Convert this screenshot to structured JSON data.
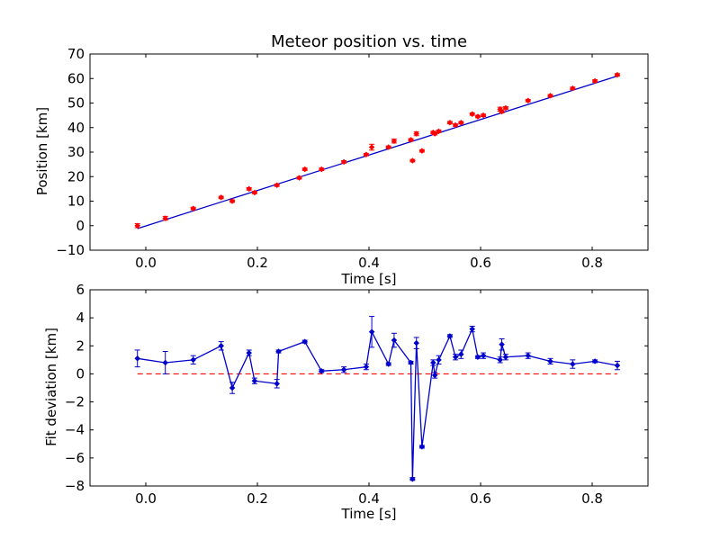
{
  "chart_data": [
    {
      "type": "scatter",
      "title": "Meteor position vs. time",
      "xlabel": "Time [s]",
      "ylabel": "Position [km]",
      "xlim": [
        -0.1,
        0.9
      ],
      "ylim": [
        -10,
        70
      ],
      "xticks": [
        0.0,
        0.2,
        0.4,
        0.6,
        0.8
      ],
      "xtick_labels": [
        "0.0",
        "0.2",
        "0.4",
        "0.6",
        "0.8"
      ],
      "yticks": [
        -10,
        0,
        10,
        20,
        30,
        40,
        50,
        60,
        70
      ],
      "ytick_labels": [
        "−10",
        "0",
        "10",
        "20",
        "30",
        "40",
        "50",
        "60",
        "70"
      ],
      "grid": false,
      "colors": {
        "points": "#ff0000",
        "fit": "#0000cc"
      },
      "series": [
        {
          "kind": "points_with_errorbars",
          "x": [
            -0.015,
            0.035,
            0.085,
            0.135,
            0.155,
            0.185,
            0.195,
            0.235,
            0.275,
            0.285,
            0.315,
            0.355,
            0.395,
            0.405,
            0.435,
            0.445,
            0.475,
            0.478,
            0.485,
            0.495,
            0.515,
            0.518,
            0.525,
            0.545,
            0.555,
            0.565,
            0.585,
            0.595,
            0.605,
            0.635,
            0.638,
            0.645,
            0.685,
            0.725,
            0.765,
            0.805,
            0.845
          ],
          "y": [
            0,
            3,
            7,
            11.5,
            10,
            15,
            13.5,
            16.5,
            19.5,
            23,
            23,
            26,
            29,
            32,
            32,
            34.5,
            35,
            26.5,
            37.5,
            30.5,
            38,
            37.5,
            38.5,
            42,
            41,
            42,
            45.5,
            44.5,
            45,
            47.5,
            46.5,
            48,
            51,
            53,
            56,
            59,
            61.5
          ],
          "yerr": [
            0.8,
            0.8,
            0.5,
            0.5,
            0.5,
            0.5,
            0.5,
            0.5,
            0.5,
            0.5,
            0.5,
            0.5,
            0.5,
            1.2,
            0.5,
            0.8,
            0.5,
            0.5,
            0.8,
            0.5,
            0.5,
            0.5,
            0.5,
            0.5,
            0.5,
            0.5,
            0.5,
            0.5,
            0.5,
            0.8,
            0.5,
            0.5,
            0.5,
            0.5,
            0.5,
            0.5,
            0.5
          ]
        },
        {
          "kind": "line",
          "x": [
            -0.015,
            0.845
          ],
          "y": [
            -1.2,
            61
          ]
        }
      ]
    },
    {
      "type": "line",
      "xlabel": "Time [s]",
      "ylabel": "Fit deviation [km]",
      "xlim": [
        -0.1,
        0.9
      ],
      "ylim": [
        -8,
        6
      ],
      "xticks": [
        0.0,
        0.2,
        0.4,
        0.6,
        0.8
      ],
      "xtick_labels": [
        "0.0",
        "0.2",
        "0.4",
        "0.6",
        "0.8"
      ],
      "yticks": [
        -8,
        -6,
        -4,
        -2,
        0,
        2,
        4,
        6
      ],
      "ytick_labels": [
        "−8",
        "−6",
        "−4",
        "−2",
        "0",
        "2",
        "4",
        "6"
      ],
      "grid": false,
      "colors": {
        "line": "#0000cc",
        "zero": "#ff0000"
      },
      "series": [
        {
          "kind": "line_with_errorbars",
          "x": [
            -0.015,
            0.035,
            0.085,
            0.135,
            0.155,
            0.185,
            0.195,
            0.235,
            0.238,
            0.285,
            0.315,
            0.355,
            0.395,
            0.405,
            0.435,
            0.445,
            0.475,
            0.478,
            0.485,
            0.495,
            0.515,
            0.518,
            0.525,
            0.545,
            0.555,
            0.565,
            0.585,
            0.595,
            0.605,
            0.635,
            0.638,
            0.645,
            0.685,
            0.725,
            0.765,
            0.805,
            0.845
          ],
          "y": [
            1.1,
            0.8,
            1.0,
            2.0,
            -1.0,
            1.5,
            -0.5,
            -0.7,
            1.6,
            2.3,
            0.2,
            0.3,
            0.5,
            3.0,
            0.7,
            2.4,
            0.8,
            -7.5,
            2.2,
            -5.2,
            0.8,
            -0.1,
            1.0,
            2.7,
            1.2,
            1.4,
            3.2,
            1.2,
            1.3,
            1.0,
            2.1,
            1.2,
            1.3,
            0.9,
            0.7,
            0.9,
            0.6
          ],
          "yerr": [
            0.6,
            0.8,
            0.3,
            0.3,
            0.4,
            0.2,
            0.2,
            0.3,
            0.1,
            0.1,
            0.1,
            0.2,
            0.2,
            1.1,
            0.1,
            0.5,
            0.1,
            0.1,
            0.4,
            0.1,
            0.2,
            0.2,
            0.3,
            0.1,
            0.2,
            0.3,
            0.2,
            0.1,
            0.2,
            0.2,
            0.4,
            0.2,
            0.2,
            0.2,
            0.3,
            0.1,
            0.3
          ]
        },
        {
          "kind": "reference_line",
          "style": "dashed",
          "x": [
            -0.015,
            0.845
          ],
          "y": [
            0,
            0
          ]
        }
      ]
    }
  ]
}
